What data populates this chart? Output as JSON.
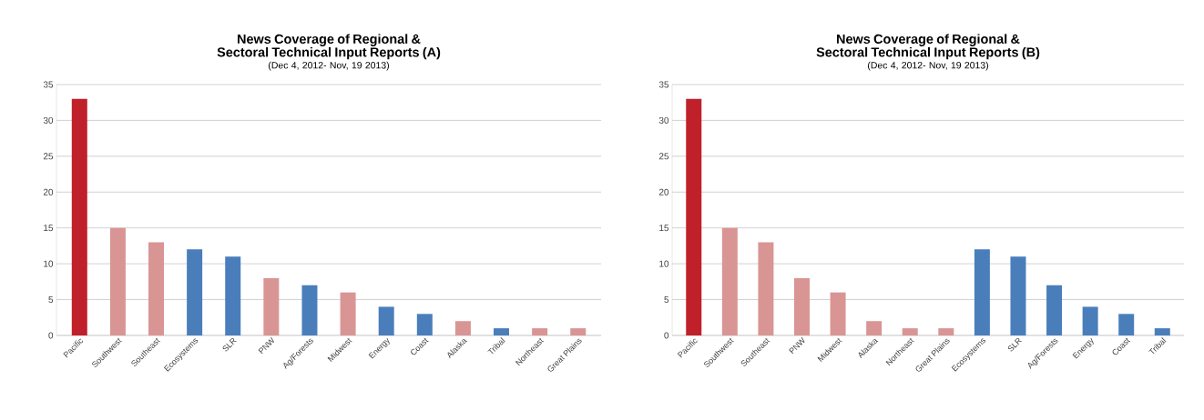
{
  "chart_data": [
    {
      "type": "bar",
      "title": "News Coverage of Regional & Sectoral Technical Input Reports (A)",
      "subtitle": "(Dec 4, 2012- Nov, 19 2013)",
      "categories": [
        "Pacific",
        "Southwest",
        "Southeast",
        "Ecosystems",
        "SLR",
        "PNW",
        "Ag/Forests",
        "Midwest",
        "Energy",
        "Coast",
        "Alaska",
        "Tribal",
        "Northeast",
        "Great Plains"
      ],
      "values": [
        33,
        15,
        13,
        12,
        11,
        8,
        7,
        6,
        4,
        3,
        2,
        1,
        1,
        1
      ],
      "colors": [
        "#c0202a",
        "#d99594",
        "#d99594",
        "#4a7ebb",
        "#4a7ebb",
        "#d99594",
        "#4a7ebb",
        "#d99594",
        "#4a7ebb",
        "#4a7ebb",
        "#d99594",
        "#4a7ebb",
        "#d99594",
        "#d99594"
      ],
      "ylim": [
        0,
        35
      ],
      "yticks": [
        0,
        5,
        10,
        15,
        20,
        25,
        30,
        35
      ],
      "grid": "y"
    },
    {
      "type": "bar",
      "title": "News Coverage of Regional & Sectoral Technical Input Reports (B)",
      "subtitle": "(Dec 4, 2012- Nov, 19 2013)",
      "categories": [
        "Pacific",
        "Southwest",
        "Southeast",
        "PNW",
        "Midwest",
        "Alaska",
        "Northeast",
        "Great Plains",
        "Ecosystems",
        "SLR",
        "Ag/Forests",
        "Energy",
        "Coast",
        "Tribal"
      ],
      "values": [
        33,
        15,
        13,
        8,
        6,
        2,
        1,
        1,
        12,
        11,
        7,
        4,
        3,
        1
      ],
      "colors": [
        "#c0202a",
        "#d99594",
        "#d99594",
        "#d99594",
        "#d99594",
        "#d99594",
        "#d99594",
        "#d99594",
        "#4a7ebb",
        "#4a7ebb",
        "#4a7ebb",
        "#4a7ebb",
        "#4a7ebb",
        "#4a7ebb"
      ],
      "ylim": [
        0,
        35
      ],
      "yticks": [
        0,
        5,
        10,
        15,
        20,
        25,
        30,
        35
      ],
      "grid": "y"
    }
  ]
}
